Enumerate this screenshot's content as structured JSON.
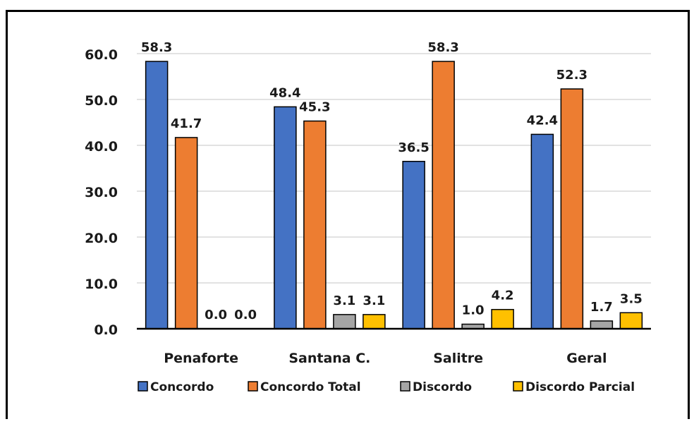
{
  "chart_data": {
    "type": "bar",
    "title": "",
    "xlabel": "",
    "ylabel": "",
    "categories": [
      "Penaforte",
      "Santana C.",
      "Salitre",
      "Geral"
    ],
    "series": [
      {
        "name": "Concordo",
        "color": "#4472c4",
        "values": [
          58.3,
          48.4,
          36.5,
          42.4
        ]
      },
      {
        "name": "Concordo Total",
        "color": "#ed7d31",
        "values": [
          41.7,
          45.3,
          58.3,
          52.3
        ]
      },
      {
        "name": "Discordo",
        "color": "#a5a5a5",
        "values": [
          0.0,
          3.1,
          1.0,
          1.7
        ]
      },
      {
        "name": "Discordo Parcial",
        "color": "#ffc000",
        "values": [
          0.0,
          3.1,
          4.2,
          3.5
        ]
      }
    ],
    "ylim": [
      0,
      60
    ],
    "yticks": [
      "0.0",
      "10.0",
      "20.0",
      "30.0",
      "40.0",
      "50.0",
      "60.0"
    ],
    "grid": true,
    "legend_position": "bottom"
  }
}
